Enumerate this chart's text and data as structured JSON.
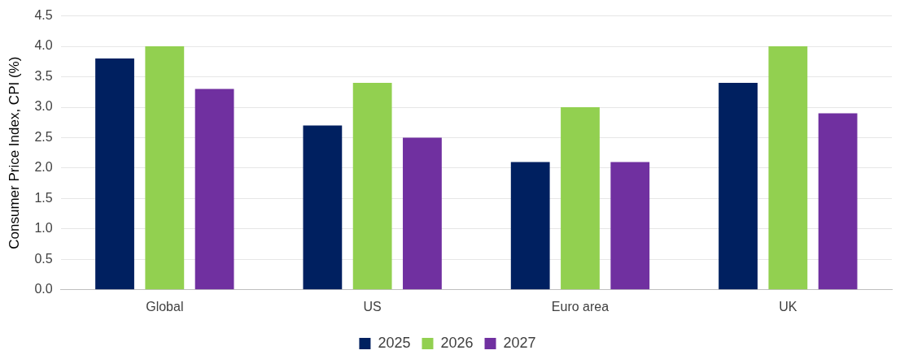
{
  "chart_data": {
    "type": "bar",
    "ylabel": "Consumer Price Index, CPI (%)",
    "categories": [
      "Global",
      "US",
      "Euro area",
      "UK"
    ],
    "series": [
      {
        "name": "2025",
        "color": "#002060",
        "values": [
          3.8,
          2.7,
          2.1,
          3.4
        ]
      },
      {
        "name": "2026",
        "color": "#92d050",
        "values": [
          4.0,
          3.4,
          3.0,
          4.0
        ]
      },
      {
        "name": "2027",
        "color": "#7030a0",
        "values": [
          3.3,
          2.5,
          2.1,
          2.9
        ]
      }
    ],
    "ylim": [
      0,
      4.5
    ],
    "yticks": [
      {
        "value": 0,
        "label": "0.0"
      },
      {
        "value": 0.5,
        "label": "0.5"
      },
      {
        "value": 1,
        "label": "1.0"
      },
      {
        "value": 1.5,
        "label": "1.5"
      },
      {
        "value": 2,
        "label": "2.0"
      },
      {
        "value": 2.5,
        "label": "2.5"
      },
      {
        "value": 3,
        "label": "3.0"
      },
      {
        "value": 3.5,
        "label": "3.5"
      },
      {
        "value": 4,
        "label": "4.0"
      },
      {
        "value": 4.5,
        "label": "4.5"
      }
    ],
    "grid": "y",
    "legend": "bottom"
  }
}
